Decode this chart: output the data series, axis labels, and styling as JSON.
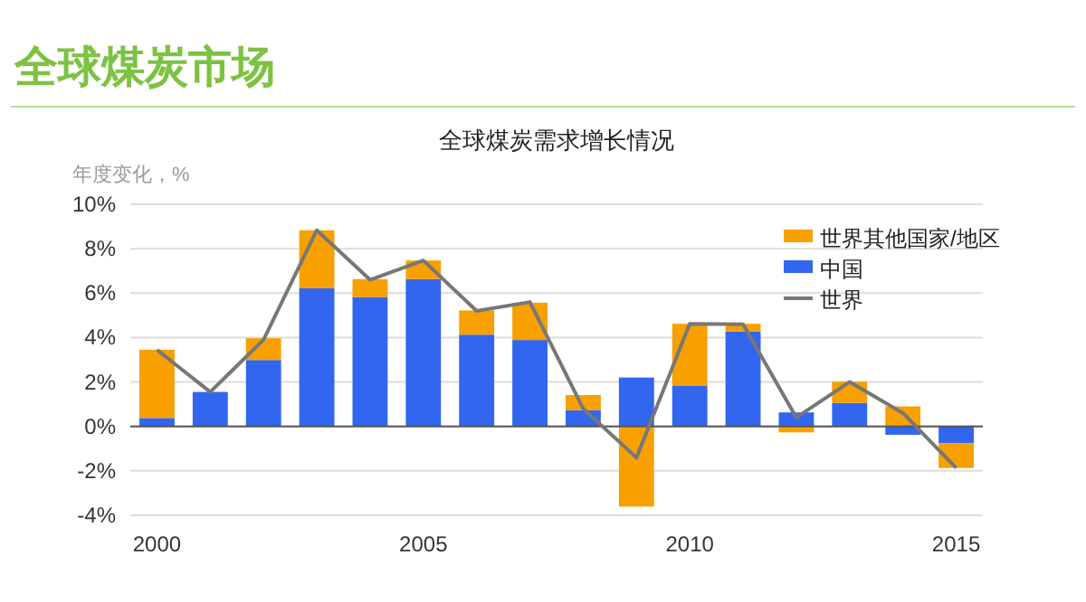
{
  "chart_data": {
    "type": "bar",
    "title": "全球煤炭市场",
    "subtitle": "全球煤炭需求增长情况",
    "ylabel": "年度变化，%",
    "categories": [
      "2000",
      null,
      null,
      null,
      null,
      "2005",
      null,
      null,
      null,
      null,
      "2010",
      null,
      null,
      null,
      null,
      "2015"
    ],
    "stacked": true,
    "series": [
      {
        "name": "中国",
        "color": "#3366ee",
        "values": [
          0.38,
          1.55,
          2.99,
          6.22,
          5.82,
          6.63,
          4.13,
          3.89,
          0.73,
          2.2,
          1.82,
          4.27,
          0.63,
          1.06,
          -0.38,
          -0.76
        ]
      },
      {
        "name": "世界其他国家/地区",
        "color": "#f7a000",
        "values": [
          3.07,
          0,
          0.98,
          2.61,
          0.81,
          0.84,
          1.09,
          1.68,
          0.68,
          -3.61,
          2.8,
          0.35,
          -0.27,
          0.95,
          0.9,
          -1.11
        ]
      },
      {
        "name": "世界",
        "type": "line",
        "color": "#777777",
        "values": [
          3.45,
          1.55,
          3.9,
          8.83,
          6.6,
          7.47,
          5.2,
          5.6,
          0.8,
          -1.41,
          4.62,
          4.6,
          0.4,
          2.0,
          0.6,
          -1.87
        ]
      }
    ],
    "ylim": [
      -4,
      10
    ],
    "yticks": [
      {
        "value": -4,
        "label": "-4%"
      },
      {
        "value": -2,
        "label": "-2%"
      },
      {
        "value": 0,
        "label": "0%"
      },
      {
        "value": 2,
        "label": "2%"
      },
      {
        "value": 4,
        "label": "4%"
      },
      {
        "value": 6,
        "label": "6%"
      },
      {
        "value": 8,
        "label": "8%"
      },
      {
        "value": 10,
        "label": "10%"
      }
    ],
    "grid": "y",
    "legend": "top right",
    "marker": "none",
    "line_style": "solid"
  }
}
